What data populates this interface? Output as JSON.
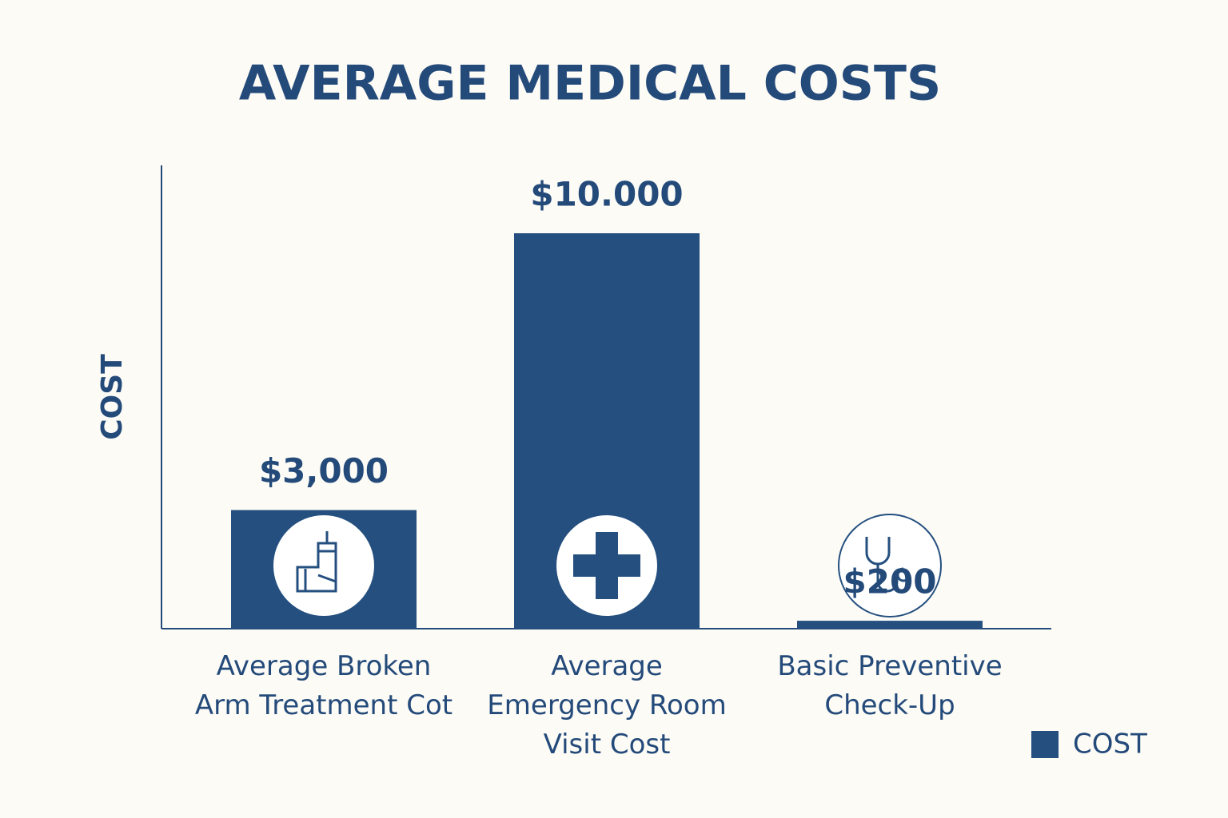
{
  "chart_data": {
    "type": "bar",
    "title": "AVERAGE MEDICAL COSTS",
    "ylabel": "COST",
    "categories": [
      "Average Broken\nArm Treatment Cot",
      "Average\nEmergency Room\nVisit Cost",
      "Basic Preventive\nCheck-Up"
    ],
    "series": [
      {
        "name": "COST",
        "color": "#244f7f",
        "values": [
          3000,
          10000,
          200
        ],
        "value_labels": [
          "$3,000",
          "$10.000",
          "$200"
        ]
      }
    ],
    "legend": "bottom-right"
  }
}
